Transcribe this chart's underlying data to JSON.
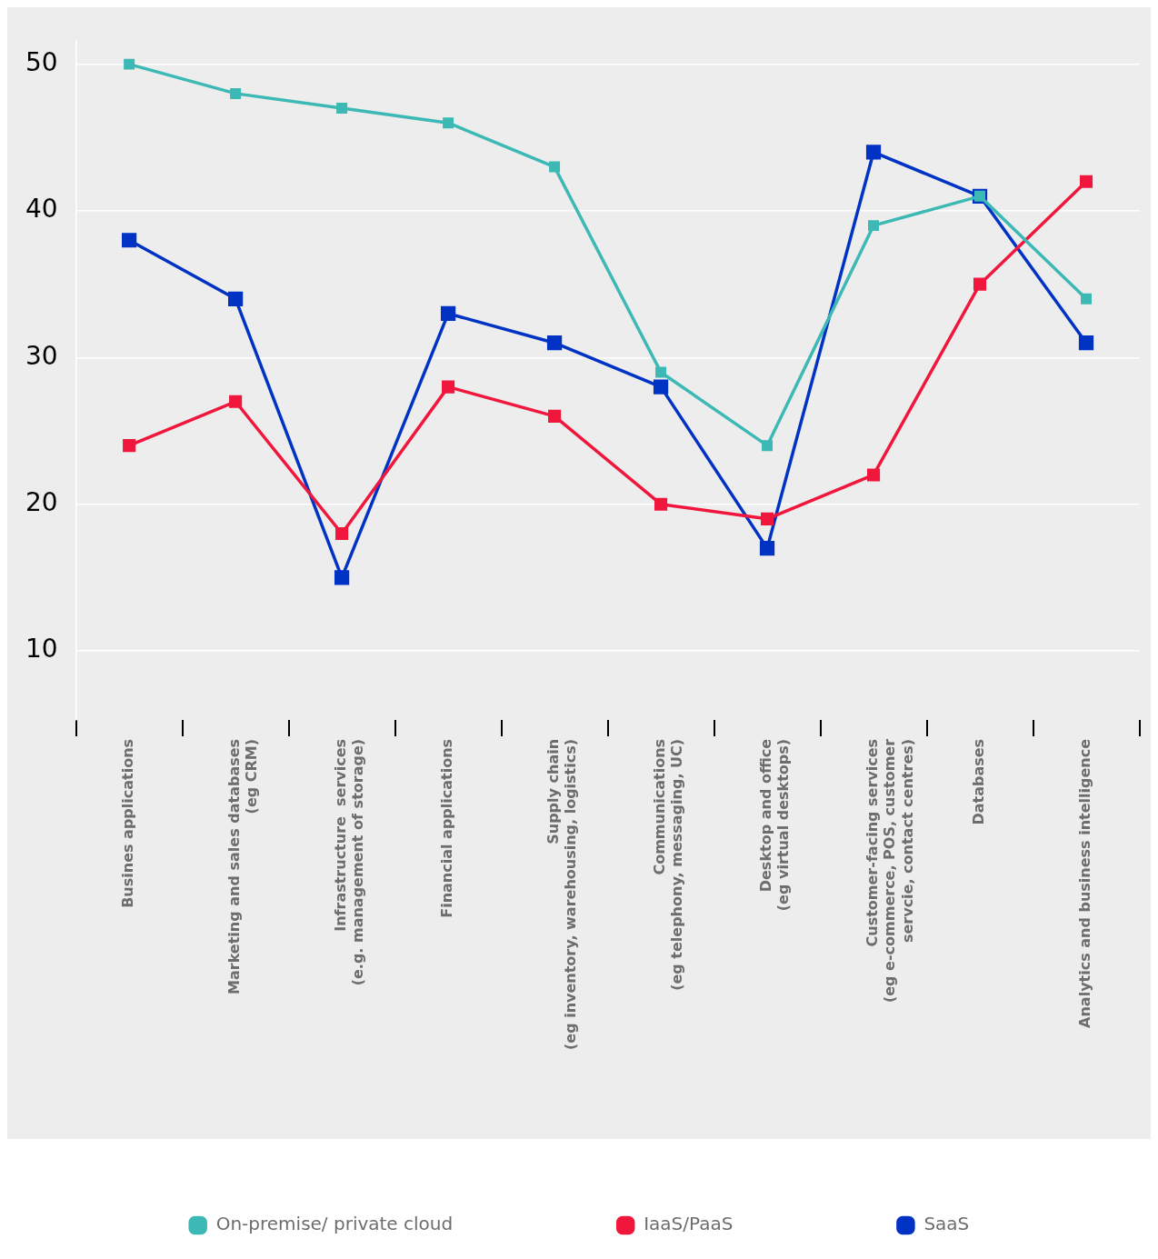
{
  "chart_data": {
    "type": "line",
    "categories": [
      "Busines applications",
      "Marketing and sales databases\n(eg CRM)",
      "Infrastructure  services\n(e.g. management of storage)",
      "Financial applications",
      "Supply chain\n(eg inventory, warehousing, logistics)",
      "Communications\n(eg telephony, messaging, UC)",
      "Desktop and office\n(eg virtual desktops)",
      "Customer-facing services\n(eg e-commerce, POS, customer\nservcie, contact centres)",
      "Databases",
      "Analytics and business intelligence"
    ],
    "series": [
      {
        "name": "On-premise/ private cloud",
        "color": "#3cb9b4",
        "values": [
          50,
          48,
          47,
          46,
          43,
          29,
          24,
          39,
          41,
          34
        ]
      },
      {
        "name": "IaaS/PaaS",
        "color": "#f0163c",
        "values": [
          24,
          27,
          18,
          28,
          26,
          20,
          19,
          22,
          35,
          42
        ]
      },
      {
        "name": "SaaS",
        "color": "#0033c4",
        "values": [
          38,
          34,
          15,
          33,
          31,
          28,
          17,
          44,
          41,
          31
        ]
      }
    ],
    "ylim": [
      5.3,
      51.6
    ],
    "yticks": [
      10,
      20,
      30,
      40,
      50
    ],
    "grid": "y",
    "legend": "bottom",
    "marker": "square",
    "line_style": "solid"
  }
}
